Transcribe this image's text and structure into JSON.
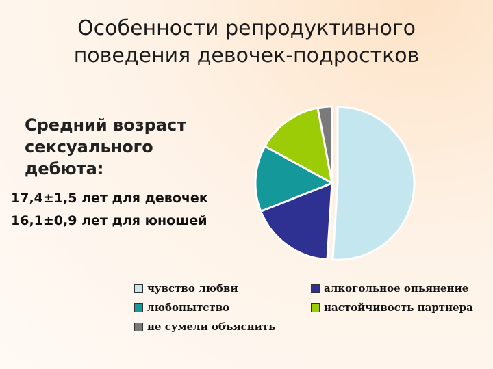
{
  "title": {
    "line1": "Особенности репродуктивного",
    "line2": "поведения девочек-подростков"
  },
  "subheading": {
    "line1": "Средний возраст",
    "line2": "сексуального",
    "line3": "дебюта:"
  },
  "ages": {
    "girls": "17,4±1,5 лет для девочек",
    "boys": "16,1±0,9 лет для юношей"
  },
  "chart_data": {
    "type": "pie",
    "legend": "bottom",
    "slices": [
      {
        "label": "чувство любви",
        "value": 51,
        "color": "#c4e6ee",
        "explode": 1
      },
      {
        "label": "алкогольное опьянение",
        "value": 18,
        "color": "#2e3191",
        "explode": 0
      },
      {
        "label": "любопытство",
        "value": 14,
        "color": "#14989a",
        "explode": 0
      },
      {
        "label": "настойчивость партнера",
        "value": 14,
        "color": "#9ccc05",
        "explode": 0
      },
      {
        "label": "не сумели объяснить",
        "value": 3,
        "color": "#7a7a7a",
        "explode": 0
      }
    ],
    "legend_labels": {
      "love": "чувство любви",
      "alcohol": "алкогольное опьянение",
      "curiosity": "любопытство",
      "partner": "настойчивость партнера",
      "unexplained": "не сумели объяснить"
    }
  }
}
